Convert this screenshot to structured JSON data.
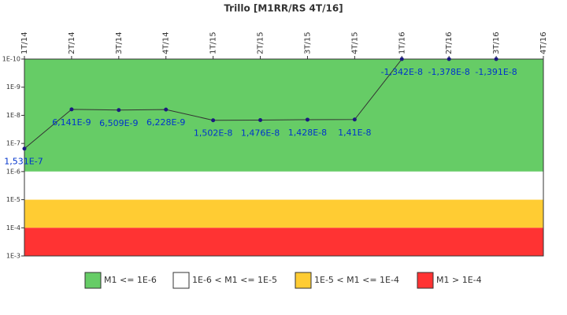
{
  "chart_data": {
    "type": "line",
    "title": "Trillo [M1RR/RS 4T/16]",
    "categories": [
      "1T/14",
      "2T/14",
      "3T/14",
      "4T/14",
      "1T/15",
      "2T/15",
      "3T/15",
      "4T/15",
      "1T/16",
      "2T/16",
      "3T/16",
      "4T/16"
    ],
    "series": [
      {
        "name": "M1",
        "color": "#333333",
        "marker_color": "#1a1a80",
        "label_color": "#0033cc",
        "values": [
          1.531e-07,
          6.141e-09,
          6.509e-09,
          6.228e-09,
          1.502e-08,
          1.476e-08,
          1.428e-08,
          1.41e-08,
          -1.342e-08,
          -1.378e-08,
          -1.391e-08,
          null
        ],
        "value_labels": [
          "1,531E-7",
          "6,141E-9",
          "6,509E-9",
          "6,228E-9",
          "1,502E-8",
          "1,476E-8",
          "1,428E-8",
          "1,41E-8",
          "-1,342E-8",
          "-1,378E-8",
          "-1,391E-8",
          null
        ]
      }
    ],
    "yscale": "log",
    "y_inverted": true,
    "ylim": [
      1e-10,
      0.001
    ],
    "yticks": [
      {
        "value": 1e-10,
        "label": "1E-10"
      },
      {
        "value": 1e-09,
        "label": "1E-9"
      },
      {
        "value": 1e-08,
        "label": "1E-8"
      },
      {
        "value": 1e-07,
        "label": "1E-7"
      },
      {
        "value": 1e-06,
        "label": "1E-6"
      },
      {
        "value": 1e-05,
        "label": "1E-5"
      },
      {
        "value": 0.0001,
        "label": "1E-4"
      },
      {
        "value": 0.001,
        "label": "1E-3"
      }
    ],
    "bands": [
      {
        "from": 1e-10,
        "to": 1e-06,
        "color": "#66cc66",
        "label": "M1 <= 1E-6"
      },
      {
        "from": 1e-06,
        "to": 1e-05,
        "color": "#ffffff",
        "label": "1E-6 < M1 <= 1E-5"
      },
      {
        "from": 1e-05,
        "to": 0.0001,
        "color": "#ffcc33",
        "label": "1E-5 < M1 <= 1E-4"
      },
      {
        "from": 0.0001,
        "to": 0.001,
        "color": "#ff3333",
        "label": "M1 > 1E-4"
      }
    ]
  }
}
